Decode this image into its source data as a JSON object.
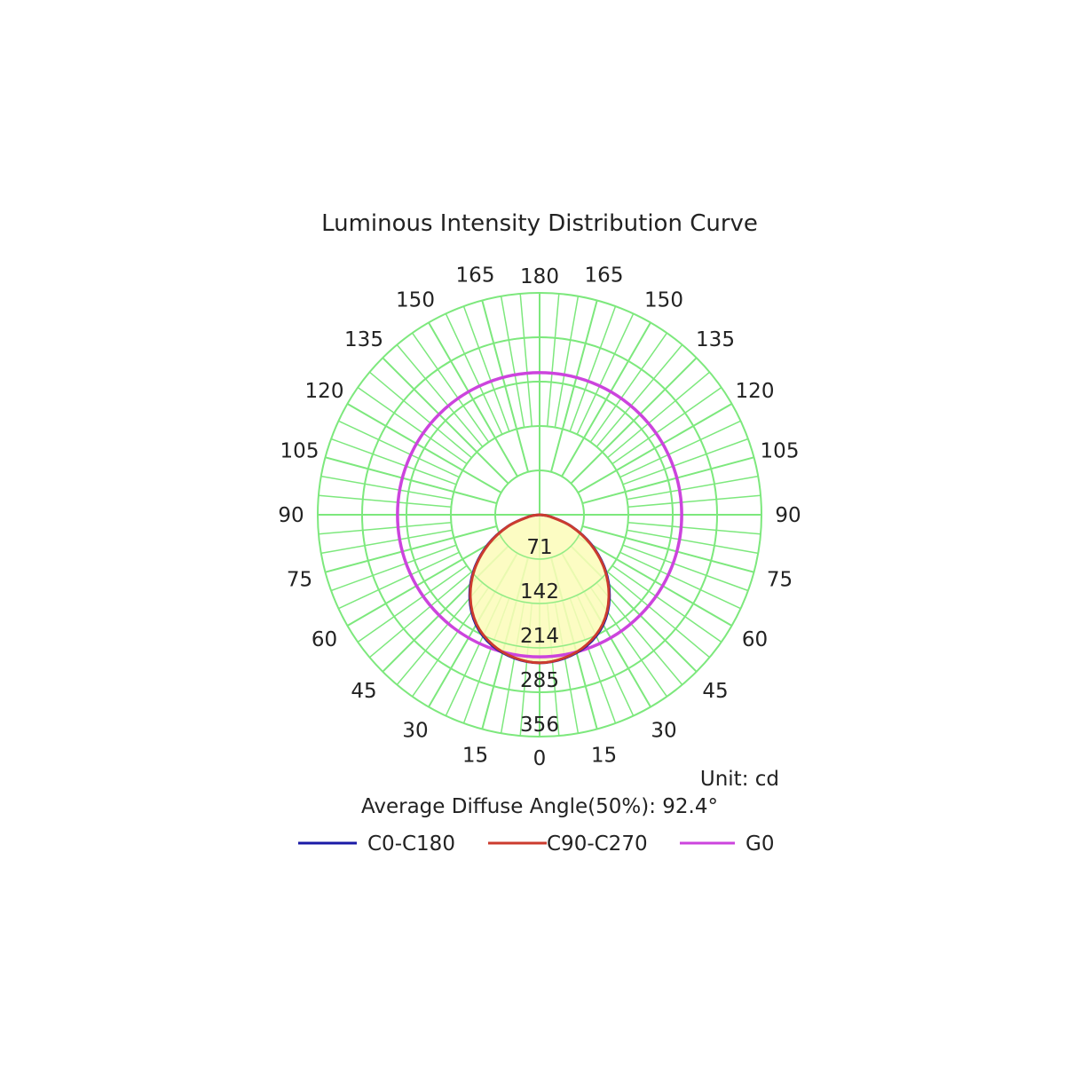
{
  "chart_data": {
    "type": "polar",
    "title": "Luminous Intensity Distribution Curve",
    "unit_label": "Unit: cd",
    "diffuse_angle_label": "Average Diffuse Angle(50%): 92.4°",
    "radial_ticks": [
      "71",
      "142",
      "214",
      "285",
      "356"
    ],
    "radial_values": [
      71,
      142,
      214,
      285,
      356
    ],
    "center_label": "0",
    "rmax": 356,
    "grid": true,
    "angle_step_major": 15,
    "angle_labels_left": [
      "15",
      "30",
      "45",
      "60",
      "75",
      "90",
      "105",
      "120",
      "135",
      "150",
      "165"
    ],
    "angle_labels_right": [
      "15",
      "30",
      "45",
      "60",
      "75",
      "90",
      "105",
      "120",
      "135",
      "150",
      "165"
    ],
    "angle_label_top": "180",
    "angle_label_bottom": "0",
    "colors": {
      "grid": "#7de87d",
      "fill": "#fbfcb9",
      "c0": "#1a1aa6",
      "c90": "#cc3b2e",
      "g0": "#cc44dd",
      "text": "#222222"
    },
    "legend_position": "bottom",
    "series": [
      {
        "name": "C0-C180",
        "color": "#1a1aa6",
        "angles": [
          0,
          10,
          20,
          30,
          40,
          50,
          60,
          70,
          80,
          90
        ],
        "values": [
          297,
          292,
          279,
          255,
          218,
          172,
          120,
          68,
          22,
          0
        ]
      },
      {
        "name": "C90-C270",
        "color": "#cc3b2e",
        "angles": [
          0,
          10,
          20,
          30,
          40,
          50,
          60,
          70,
          80,
          90
        ],
        "values": [
          297,
          291,
          277,
          253,
          216,
          170,
          118,
          67,
          21,
          0
        ]
      },
      {
        "name": "G0",
        "color": "#cc44dd",
        "angles": [
          0,
          180
        ],
        "values": [
          285,
          285
        ]
      }
    ]
  }
}
